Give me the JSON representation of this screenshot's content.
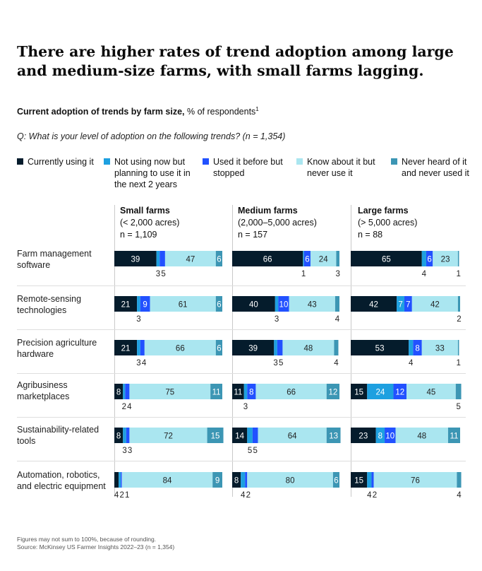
{
  "title": "There are higher rates of trend adoption among large and medium-size farms, with small farms lagging.",
  "subtitle": {
    "bold": "Current adoption of trends by farm size,",
    "rest": " % of respondents",
    "sup": "1"
  },
  "question": "Q: What is your level of adoption on the following trends? (n = 1,354)",
  "legend": [
    {
      "label": "Currently using it",
      "color": "#051c2c"
    },
    {
      "label": "Not using now but planning to use it in the next 2 years",
      "color": "#1ea0e0"
    },
    {
      "label": "Used it before but stopped",
      "color": "#2251ff"
    },
    {
      "label": "Know about it but never use it",
      "color": "#aae6f0"
    },
    {
      "label": "Never heard of it and never used it",
      "color": "#3c96b4"
    }
  ],
  "footnote": {
    "line1": "Figures may not sum to 100%, because of rounding.",
    "line2": "Source: McKinsey US Farmer Insights 2022–23 (n = 1,354)"
  },
  "chart_data": {
    "type": "bar",
    "stacked": true,
    "orientation": "horizontal",
    "unit": "% of respondents",
    "segments": [
      "Currently using it",
      "Not using now but planning to use it in the next 2 years",
      "Used it before but stopped",
      "Know about it but never use it",
      "Never heard of it and never used it"
    ],
    "colors": [
      "#051c2c",
      "#1ea0e0",
      "#2251ff",
      "#aae6f0",
      "#3c96b4"
    ],
    "groups": [
      {
        "title": "Small farms",
        "line2": "(< 2,000 acres)",
        "line3": "n = 1,109"
      },
      {
        "title": "Medium farms",
        "line2": "(2,000–5,000 acres)",
        "line3": "n = 157"
      },
      {
        "title": "Large farms",
        "line2": "(> 5,000 acres)",
        "line3": "n = 88"
      }
    ],
    "categories": [
      "Farm management software",
      "Remote-sensing technologies",
      "Precision agriculture hardware",
      "Agribusiness marketplaces",
      "Sustainability-related tools",
      "Automation, robotics, and electric equipment"
    ],
    "values": [
      [
        [
          39,
          3,
          5,
          47,
          6
        ],
        [
          66,
          1,
          6,
          24,
          3
        ],
        [
          65,
          4,
          6,
          23,
          1
        ]
      ],
      [
        [
          21,
          3,
          9,
          61,
          6
        ],
        [
          40,
          3,
          10,
          43,
          4
        ],
        [
          42,
          7,
          7,
          42,
          2
        ]
      ],
      [
        [
          21,
          3,
          4,
          66,
          6
        ],
        [
          39,
          3,
          5,
          48,
          4
        ],
        [
          53,
          4,
          8,
          33,
          1
        ]
      ],
      [
        [
          8,
          2,
          4,
          75,
          11
        ],
        [
          11,
          3,
          8,
          66,
          12
        ],
        [
          15,
          24,
          12,
          45,
          5
        ]
      ],
      [
        [
          8,
          3,
          3,
          72,
          15
        ],
        [
          14,
          5,
          5,
          64,
          13
        ],
        [
          23,
          8,
          10,
          48,
          11
        ]
      ],
      [
        [
          4,
          2,
          1,
          84,
          9
        ],
        [
          8,
          4,
          2,
          80,
          6
        ],
        [
          15,
          4,
          2,
          76,
          4
        ]
      ]
    ]
  }
}
